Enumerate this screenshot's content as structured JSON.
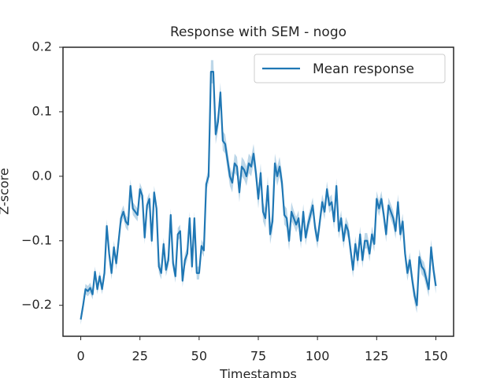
{
  "chart_data": {
    "type": "line",
    "title": "Response with SEM - nogo",
    "xlabel": "Timestamps",
    "ylabel": "Z-score",
    "x": [
      0,
      1,
      2,
      3,
      4,
      5,
      6,
      7,
      8,
      9,
      10,
      11,
      12,
      13,
      14,
      15,
      16,
      17,
      18,
      19,
      20,
      21,
      22,
      23,
      24,
      25,
      26,
      27,
      28,
      29,
      30,
      31,
      32,
      33,
      34,
      35,
      36,
      37,
      38,
      39,
      40,
      41,
      42,
      43,
      44,
      45,
      46,
      47,
      48,
      49,
      50,
      51,
      52,
      53,
      54,
      55,
      56,
      57,
      58,
      59,
      60,
      61,
      62,
      63,
      64,
      65,
      66,
      67,
      68,
      69,
      70,
      71,
      72,
      73,
      74,
      75,
      76,
      77,
      78,
      79,
      80,
      81,
      82,
      83,
      84,
      85,
      86,
      87,
      88,
      89,
      90,
      91,
      92,
      93,
      94,
      95,
      96,
      97,
      98,
      99,
      100,
      101,
      102,
      103,
      104,
      105,
      106,
      107,
      108,
      109,
      110,
      111,
      112,
      113,
      114,
      115,
      116,
      117,
      118,
      119,
      120,
      121,
      122,
      123,
      124,
      125,
      126,
      127,
      128,
      129,
      130,
      131,
      132,
      133,
      134,
      135,
      136,
      137,
      138,
      139,
      140,
      141,
      142,
      143,
      144,
      145,
      146,
      147,
      148,
      149,
      150
    ],
    "series": [
      {
        "name": "Mean response",
        "color": "#1f77b4",
        "values": [
          -0.222,
          -0.2,
          -0.175,
          -0.178,
          -0.173,
          -0.183,
          -0.148,
          -0.175,
          -0.155,
          -0.175,
          -0.15,
          -0.077,
          -0.12,
          -0.15,
          -0.11,
          -0.135,
          -0.1,
          -0.065,
          -0.055,
          -0.07,
          -0.075,
          -0.015,
          -0.05,
          -0.055,
          -0.06,
          -0.02,
          -0.03,
          -0.095,
          -0.045,
          -0.035,
          -0.1,
          -0.025,
          -0.05,
          -0.14,
          -0.15,
          -0.105,
          -0.145,
          -0.13,
          -0.06,
          -0.135,
          -0.155,
          -0.09,
          -0.085,
          -0.162,
          -0.13,
          -0.12,
          -0.065,
          -0.14,
          -0.065,
          -0.15,
          -0.15,
          -0.108,
          -0.115,
          -0.012,
          0.0,
          0.162,
          0.162,
          0.065,
          0.085,
          0.13,
          0.055,
          0.05,
          0.025,
          0.0,
          -0.01,
          0.02,
          0.015,
          -0.025,
          0.015,
          0.01,
          0.0,
          0.02,
          0.015,
          0.035,
          0.005,
          -0.035,
          0.005,
          -0.055,
          -0.065,
          -0.015,
          -0.09,
          -0.07,
          0.02,
          0.0,
          0.015,
          -0.01,
          -0.06,
          -0.065,
          -0.1,
          -0.055,
          -0.065,
          -0.075,
          -0.065,
          -0.1,
          -0.055,
          -0.095,
          -0.075,
          -0.06,
          -0.045,
          -0.08,
          -0.1,
          -0.07,
          -0.04,
          -0.055,
          -0.02,
          -0.045,
          -0.04,
          -0.07,
          -0.015,
          -0.085,
          -0.065,
          -0.1,
          -0.075,
          -0.085,
          -0.115,
          -0.145,
          -0.105,
          -0.13,
          -0.09,
          -0.13,
          -0.1,
          -0.1,
          -0.12,
          -0.09,
          -0.105,
          -0.035,
          -0.05,
          -0.035,
          -0.06,
          -0.09,
          -0.045,
          -0.055,
          -0.065,
          -0.085,
          -0.04,
          -0.09,
          -0.07,
          -0.12,
          -0.15,
          -0.13,
          -0.16,
          -0.185,
          -0.2,
          -0.125,
          -0.14,
          -0.145,
          -0.16,
          -0.175,
          -0.11,
          -0.145,
          -0.17
        ],
        "sem": [
          0.008,
          0.008,
          0.008,
          0.008,
          0.008,
          0.008,
          0.008,
          0.008,
          0.008,
          0.008,
          0.01,
          0.01,
          0.01,
          0.01,
          0.01,
          0.01,
          0.01,
          0.01,
          0.01,
          0.01,
          0.01,
          0.01,
          0.01,
          0.01,
          0.01,
          0.01,
          0.01,
          0.01,
          0.01,
          0.01,
          0.01,
          0.01,
          0.01,
          0.01,
          0.01,
          0.01,
          0.01,
          0.01,
          0.01,
          0.01,
          0.01,
          0.01,
          0.01,
          0.01,
          0.01,
          0.01,
          0.01,
          0.01,
          0.01,
          0.01,
          0.01,
          0.01,
          0.01,
          0.01,
          0.01,
          0.018,
          0.018,
          0.015,
          0.015,
          0.015,
          0.015,
          0.015,
          0.015,
          0.015,
          0.015,
          0.015,
          0.015,
          0.015,
          0.015,
          0.015,
          0.015,
          0.015,
          0.015,
          0.015,
          0.015,
          0.015,
          0.015,
          0.015,
          0.015,
          0.015,
          0.015,
          0.015,
          0.015,
          0.015,
          0.015,
          0.015,
          0.015,
          0.015,
          0.015,
          0.015,
          0.012,
          0.012,
          0.012,
          0.012,
          0.012,
          0.012,
          0.012,
          0.012,
          0.012,
          0.012,
          0.012,
          0.012,
          0.012,
          0.012,
          0.012,
          0.012,
          0.012,
          0.012,
          0.012,
          0.012,
          0.012,
          0.012,
          0.012,
          0.012,
          0.012,
          0.012,
          0.012,
          0.012,
          0.012,
          0.012,
          0.012,
          0.012,
          0.012,
          0.012,
          0.012,
          0.012,
          0.012,
          0.012,
          0.012,
          0.012,
          0.012,
          0.012,
          0.012,
          0.012,
          0.012,
          0.012,
          0.012,
          0.012,
          0.012,
          0.012,
          0.012,
          0.012,
          0.012,
          0.012,
          0.012,
          0.012,
          0.012,
          0.012,
          0.012,
          0.012,
          0.012
        ]
      }
    ],
    "xlim": [
      -7.5,
      157.5
    ],
    "xticks": [
      0,
      25,
      50,
      75,
      100,
      125,
      150
    ],
    "ylim": [
      -0.248,
      0.2
    ],
    "yticks": [
      {
        "value": -0.2,
        "label": "−0.2"
      },
      {
        "value": -0.1,
        "label": "−0.1"
      },
      {
        "value": 0,
        "label": "0.0"
      },
      {
        "value": 0.1,
        "label": "0.1"
      },
      {
        "value": 0.2,
        "label": "0.2"
      }
    ],
    "grid": false,
    "legend": "upper right"
  }
}
